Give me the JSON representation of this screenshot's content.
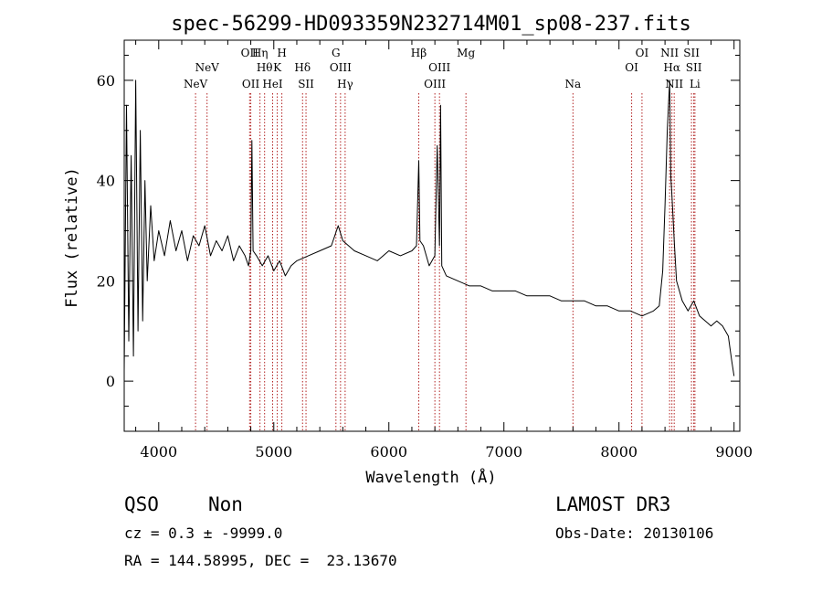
{
  "chart_data": {
    "type": "line",
    "title": "spec-56299-HD093359N232714M01_sp08-237.fits",
    "xlabel": "Wavelength (Å)",
    "ylabel": "Flux (relative)",
    "xlim": [
      3700,
      9050
    ],
    "ylim": [
      -10,
      68
    ],
    "x_ticks": [
      4000,
      5000,
      6000,
      7000,
      8000,
      9000
    ],
    "y_ticks": [
      0,
      20,
      40,
      60
    ],
    "x_tick_labels": [
      "4000",
      "5000",
      "6000",
      "7000",
      "8000",
      "9000"
    ],
    "y_tick_labels": [
      "0",
      "20",
      "40",
      "60"
    ],
    "grid": false,
    "series": [
      {
        "name": "flux",
        "x": [
          3700,
          3720,
          3740,
          3760,
          3780,
          3800,
          3820,
          3840,
          3860,
          3880,
          3900,
          3930,
          3960,
          4000,
          4050,
          4100,
          4150,
          4200,
          4250,
          4300,
          4350,
          4400,
          4450,
          4500,
          4550,
          4600,
          4650,
          4700,
          4750,
          4780,
          4800,
          4810,
          4820,
          4850,
          4900,
          4950,
          5000,
          5050,
          5100,
          5150,
          5200,
          5300,
          5400,
          5500,
          5560,
          5600,
          5650,
          5700,
          5800,
          5900,
          6000,
          6100,
          6200,
          6240,
          6260,
          6270,
          6300,
          6350,
          6400,
          6420,
          6440,
          6450,
          6460,
          6500,
          6600,
          6700,
          6800,
          6900,
          7000,
          7100,
          7200,
          7300,
          7400,
          7500,
          7600,
          7700,
          7800,
          7900,
          8000,
          8100,
          8200,
          8300,
          8350,
          8380,
          8400,
          8420,
          8440,
          8450,
          8460,
          8480,
          8500,
          8550,
          8600,
          8650,
          8700,
          8750,
          8800,
          8850,
          8900,
          8950,
          8980,
          9000
        ],
        "y": [
          2,
          55,
          8,
          45,
          5,
          60,
          10,
          50,
          12,
          40,
          20,
          35,
          24,
          30,
          25,
          32,
          26,
          30,
          24,
          29,
          27,
          31,
          25,
          28,
          26,
          29,
          24,
          27,
          25,
          23,
          26,
          48,
          26,
          25,
          23,
          25,
          22,
          24,
          21,
          23,
          24,
          25,
          26,
          27,
          31,
          28,
          27,
          26,
          25,
          24,
          26,
          25,
          26,
          27,
          44,
          28,
          27,
          23,
          25,
          47,
          27,
          55,
          23,
          21,
          20,
          19,
          19,
          18,
          18,
          18,
          17,
          17,
          17,
          16,
          16,
          16,
          15,
          15,
          14,
          14,
          13,
          14,
          15,
          22,
          35,
          50,
          60,
          41,
          37,
          28,
          20,
          16,
          14,
          16,
          13,
          12,
          11,
          12,
          11,
          9,
          4,
          1
        ]
      }
    ],
    "line_markers": [
      {
        "name": "NeV",
        "x": 4320,
        "label": "NeV",
        "row": 3
      },
      {
        "name": "NeV",
        "x": 4420,
        "label": "NeV",
        "row": 2
      },
      {
        "name": "OII",
        "x": 4790,
        "label": "OII",
        "row": 1
      },
      {
        "name": "OII",
        "x": 4800,
        "label": "OII",
        "row": 3
      },
      {
        "name": "Hη",
        "x": 4880,
        "label": "Hη",
        "row": 1
      },
      {
        "name": "Hθ",
        "x": 4920,
        "label": "Hθ",
        "row": 2
      },
      {
        "name": "HeI",
        "x": 4990,
        "label": "HeI",
        "row": 3
      },
      {
        "name": "K",
        "x": 5030,
        "label": "K",
        "row": 2
      },
      {
        "name": "H",
        "x": 5070,
        "label": "H",
        "row": 1
      },
      {
        "name": "Hδ",
        "x": 5250,
        "label": "Hδ",
        "row": 2
      },
      {
        "name": "SII",
        "x": 5280,
        "label": "SII",
        "row": 3
      },
      {
        "name": "G",
        "x": 5540,
        "label": "G",
        "row": 1
      },
      {
        "name": "OIII",
        "x": 5580,
        "label": "OIII",
        "row": 2
      },
      {
        "name": "Hγ",
        "x": 5620,
        "label": "Hγ",
        "row": 3
      },
      {
        "name": "Hβ",
        "x": 6260,
        "label": "Hβ",
        "row": 1
      },
      {
        "name": "OIII",
        "x": 6400,
        "label": "OIII",
        "row": 3
      },
      {
        "name": "OIII",
        "x": 6440,
        "label": "OIII",
        "row": 2
      },
      {
        "name": "Mg",
        "x": 6670,
        "label": "Mg",
        "row": 1
      },
      {
        "name": "Na",
        "x": 7600,
        "label": "Na",
        "row": 3
      },
      {
        "name": "OI",
        "x": 8110,
        "label": "OI",
        "row": 2
      },
      {
        "name": "OI",
        "x": 8200,
        "label": "OI",
        "row": 1
      },
      {
        "name": "NII",
        "x": 8440,
        "label": "NII",
        "row": 1
      },
      {
        "name": "Hα",
        "x": 8460,
        "label": "Hα",
        "row": 2
      },
      {
        "name": "NII",
        "x": 8480,
        "label": "NII",
        "row": 3
      },
      {
        "name": "SII",
        "x": 8630,
        "label": "SII",
        "row": 1
      },
      {
        "name": "SII",
        "x": 8650,
        "label": "SII",
        "row": 2
      },
      {
        "name": "Li",
        "x": 8660,
        "label": "Li",
        "row": 3
      }
    ]
  },
  "info": {
    "class": "QSO",
    "subclass": "Non",
    "survey": "LAMOST DR3",
    "cz": "cz = 0.3 ± -9999.0",
    "obs_date": "Obs-Date: 20130106",
    "radec": "RA = 144.58995, DEC =  23.13670"
  },
  "colors": {
    "axis": "#000000",
    "spectrum": "#000000",
    "marker_line": "#b22222"
  }
}
